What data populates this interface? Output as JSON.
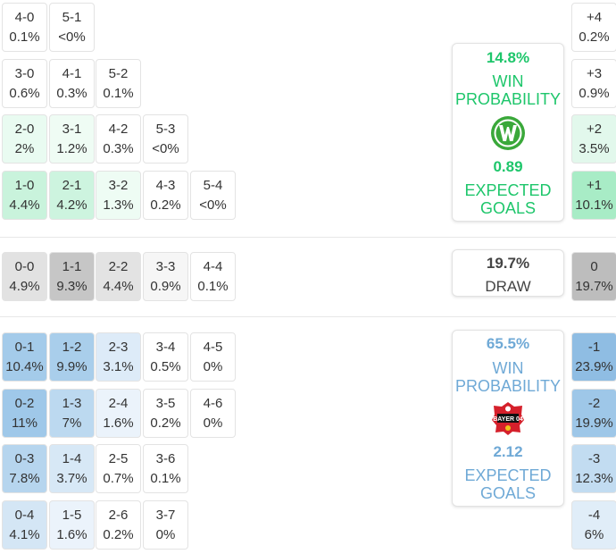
{
  "colors": {
    "home_accent": "#1ec66b",
    "away_accent": "#6fa9d6",
    "draw_text": "#444444"
  },
  "home_scores": [
    [
      "4-0",
      "0.1%",
      "#ffffff"
    ],
    [
      "5-1",
      "<0%",
      "#ffffff"
    ],
    [
      "3-0",
      "0.6%",
      "#ffffff"
    ],
    [
      "4-1",
      "0.3%",
      "#ffffff"
    ],
    [
      "5-2",
      "0.1%",
      "#ffffff"
    ],
    [
      "2-0",
      "2%",
      "#e9fbf1"
    ],
    [
      "3-1",
      "1.2%",
      "#effcf4"
    ],
    [
      "4-2",
      "0.3%",
      "#ffffff"
    ],
    [
      "5-3",
      "<0%",
      "#ffffff"
    ],
    [
      "1-0",
      "4.4%",
      "#c9f3dc"
    ],
    [
      "2-1",
      "4.2%",
      "#cdf4df"
    ],
    [
      "3-2",
      "1.3%",
      "#eefcf4"
    ],
    [
      "4-3",
      "0.2%",
      "#ffffff"
    ],
    [
      "5-4",
      "<0%",
      "#ffffff"
    ]
  ],
  "draw_scores": [
    [
      "0-0",
      "4.9%",
      "#e2e2e2"
    ],
    [
      "1-1",
      "9.3%",
      "#c6c6c6"
    ],
    [
      "2-2",
      "4.4%",
      "#e3e3e3"
    ],
    [
      "3-3",
      "0.9%",
      "#f6f6f6"
    ],
    [
      "4-4",
      "0.1%",
      "#ffffff"
    ]
  ],
  "away_scores": [
    [
      "0-1",
      "10.4%",
      "#a4cbea"
    ],
    [
      "1-2",
      "9.9%",
      "#a9ceeb"
    ],
    [
      "2-3",
      "3.1%",
      "#ddebf8"
    ],
    [
      "3-4",
      "0.5%",
      "#ffffff"
    ],
    [
      "4-5",
      "0%",
      "#ffffff"
    ],
    [
      "0-2",
      "11%",
      "#9fc8e9"
    ],
    [
      "1-3",
      "7%",
      "#bcd9f0"
    ],
    [
      "2-4",
      "1.6%",
      "#ebf3fb"
    ],
    [
      "3-5",
      "0.2%",
      "#ffffff"
    ],
    [
      "4-6",
      "0%",
      "#ffffff"
    ],
    [
      "0-3",
      "7.8%",
      "#b6d5ee"
    ],
    [
      "1-4",
      "3.7%",
      "#d7e8f6"
    ],
    [
      "2-5",
      "0.7%",
      "#ffffff"
    ],
    [
      "3-6",
      "0.1%",
      "#ffffff"
    ],
    [
      "0-4",
      "4.1%",
      "#d4e6f5"
    ],
    [
      "1-5",
      "1.6%",
      "#ebf3fb"
    ],
    [
      "2-6",
      "0.2%",
      "#ffffff"
    ],
    [
      "3-7",
      "0%",
      "#ffffff"
    ]
  ],
  "margins": [
    [
      "+4",
      "0.2%",
      "#ffffff"
    ],
    [
      "+3",
      "0.9%",
      "#ffffff"
    ],
    [
      "+2",
      "3.5%",
      "#e2f8ec"
    ],
    [
      "+1",
      "10.1%",
      "#a8ecc6"
    ],
    [
      "0",
      "19.7%",
      "#bdbdbd"
    ],
    [
      "-1",
      "23.9%",
      "#8fbde3"
    ],
    [
      "-2",
      "19.9%",
      "#9ec7e8"
    ],
    [
      "-3",
      "12.3%",
      "#c2dcf1"
    ],
    [
      "-4",
      "6%",
      "#e0edf8"
    ]
  ],
  "home_card": {
    "win_pct": "14.8%",
    "win_label_1": "WIN",
    "win_label_2": "PROBABILITY",
    "logo_icon": "wolfsburg-crest-icon",
    "xg": "0.89",
    "xg_label_1": "EXPECTED",
    "xg_label_2": "GOALS"
  },
  "draw_card": {
    "pct": "19.7%",
    "label": "DRAW"
  },
  "away_card": {
    "win_pct": "65.5%",
    "win_label_1": "WIN",
    "win_label_2": "PROBABILITY",
    "logo_icon": "leverkusen-crest-icon",
    "logo_text": "BAYER 04",
    "xg": "2.12",
    "xg_label_1": "EXPECTED",
    "xg_label_2": "GOALS"
  }
}
